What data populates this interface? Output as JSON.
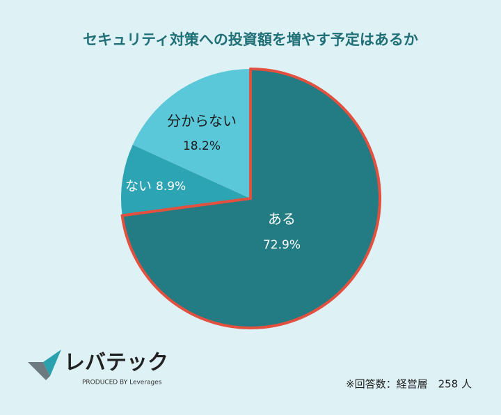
{
  "chart_data": {
    "type": "pie",
    "title": "セキュリティ対策への投資額を増やす予定はあるか",
    "categories": [
      "ある",
      "ない",
      "分からない"
    ],
    "values": [
      72.9,
      8.9,
      18.2
    ],
    "value_labels": [
      "72.9%",
      "8.9%",
      "18.2%"
    ],
    "colors": [
      "#237c83",
      "#2da4b4",
      "#5bc8d9"
    ],
    "highlight": 0,
    "highlight_color": "#e2513f"
  },
  "note": "※回答数：経営層　258 人",
  "logo": {
    "name": "レバテック",
    "tagline": "PRODUCED BY Leverages"
  }
}
